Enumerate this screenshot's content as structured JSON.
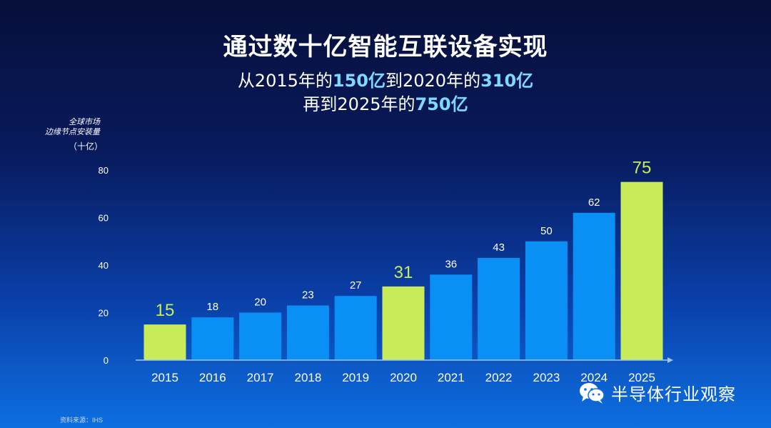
{
  "title": "通过数十亿智能互联设备实现",
  "subtitle": {
    "line1_pre": "从2015年的",
    "line1_hl1": "150亿",
    "line1_mid": "到2020年的",
    "line1_hl2": "310亿",
    "line2_pre": "再到2025年的",
    "line2_hl": "750亿"
  },
  "source": "资料来源：IHS",
  "watermark": "半导体行业观察",
  "colors": {
    "bar_default": "#0a8ff5",
    "bar_highlight": "#c8eb5a",
    "label_highlight": "#c8eb5a",
    "axis": "#9fc6f5"
  },
  "chart_data": {
    "type": "bar",
    "ylabel_line1": "全球市场",
    "ylabel_line2": "边缘节点安装量",
    "yunit": "（十亿）",
    "categories": [
      "2015",
      "2016",
      "2017",
      "2018",
      "2019",
      "2020",
      "2021",
      "2022",
      "2023",
      "2024",
      "2025"
    ],
    "values": [
      15,
      18,
      20,
      23,
      27,
      31,
      36,
      43,
      50,
      62,
      75
    ],
    "highlight_years": [
      "2015",
      "2020",
      "2025"
    ],
    "yticks": [
      0,
      20,
      40,
      60,
      80
    ],
    "ylim": [
      0,
      80
    ],
    "grid": false
  }
}
